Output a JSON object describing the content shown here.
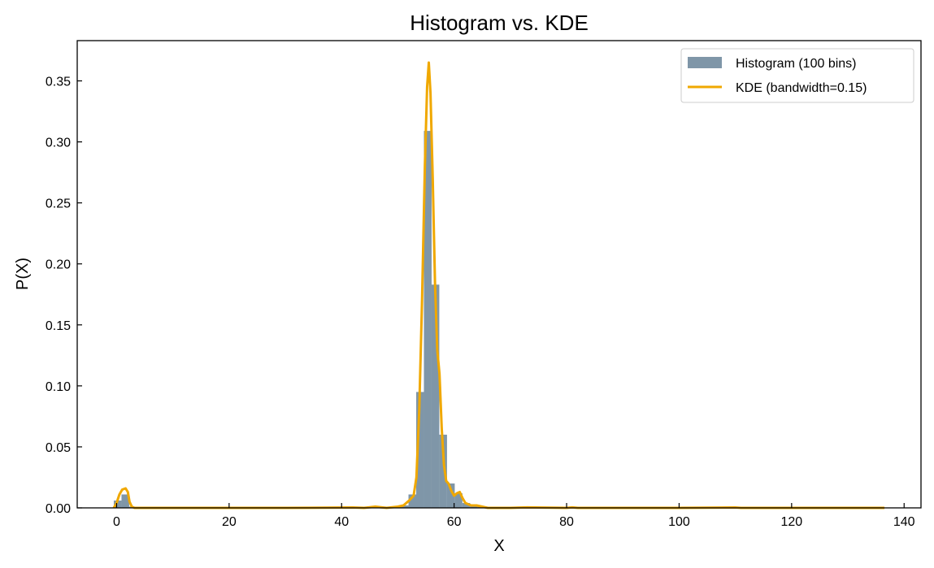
{
  "chart_data": {
    "type": "bar",
    "title": "Histogram vs. KDE",
    "xlabel": "X",
    "ylabel": "P(X)",
    "xlim": [
      -7,
      143
    ],
    "ylim": [
      0,
      0.383
    ],
    "xticks": [
      0,
      20,
      40,
      60,
      80,
      100,
      120,
      140
    ],
    "yticks": [
      0.0,
      0.05,
      0.1,
      0.15,
      0.2,
      0.25,
      0.3,
      0.35
    ],
    "grid": false,
    "legend_position": "top-right",
    "colors": {
      "histogram": "#7f96a8",
      "kde": "#f0a800",
      "axes": "#000000"
    },
    "series": [
      {
        "name": "Histogram (100 bins)",
        "kind": "histogram",
        "bin_edges_start": -0.5,
        "bin_width": 1.37,
        "bins": [
          {
            "x0": -0.5,
            "x1": 0.87,
            "y": 0.006
          },
          {
            "x0": 0.87,
            "x1": 2.24,
            "y": 0.011
          },
          {
            "x0": 2.24,
            "x1": 3.61,
            "y": 0.001
          },
          {
            "x0": 45.04,
            "x1": 46.41,
            "y": 0.0005
          },
          {
            "x0": 49.15,
            "x1": 50.52,
            "y": 0.001
          },
          {
            "x0": 50.52,
            "x1": 51.89,
            "y": 0.002
          },
          {
            "x0": 51.89,
            "x1": 53.26,
            "y": 0.011
          },
          {
            "x0": 53.26,
            "x1": 54.63,
            "y": 0.095
          },
          {
            "x0": 54.63,
            "x1": 56.0,
            "y": 0.309
          },
          {
            "x0": 56.0,
            "x1": 57.37,
            "y": 0.183
          },
          {
            "x0": 57.37,
            "x1": 58.74,
            "y": 0.06
          },
          {
            "x0": 58.74,
            "x1": 60.11,
            "y": 0.02
          },
          {
            "x0": 60.11,
            "x1": 61.48,
            "y": 0.012
          },
          {
            "x0": 61.48,
            "x1": 62.85,
            "y": 0.004
          },
          {
            "x0": 62.85,
            "x1": 64.22,
            "y": 0.002
          },
          {
            "x0": 64.22,
            "x1": 65.59,
            "y": 0.001
          }
        ]
      },
      {
        "name": "KDE (bandwidth=0.15)",
        "kind": "line",
        "points": [
          [
            -0.5,
            0.0
          ],
          [
            0,
            0.004
          ],
          [
            0.5,
            0.011
          ],
          [
            1.0,
            0.015
          ],
          [
            1.6,
            0.016
          ],
          [
            2.0,
            0.013
          ],
          [
            2.3,
            0.005
          ],
          [
            2.7,
            0.001
          ],
          [
            3.2,
            0.0
          ],
          [
            10,
            0.0
          ],
          [
            30,
            0.0
          ],
          [
            42,
            0.0003
          ],
          [
            44,
            0.0
          ],
          [
            46,
            0.001
          ],
          [
            48,
            0.0
          ],
          [
            50,
            0.001
          ],
          [
            51,
            0.002
          ],
          [
            52,
            0.006
          ],
          [
            52.8,
            0.01
          ],
          [
            53.3,
            0.025
          ],
          [
            53.8,
            0.08
          ],
          [
            54.3,
            0.17
          ],
          [
            54.8,
            0.28
          ],
          [
            55.2,
            0.345
          ],
          [
            55.5,
            0.365
          ],
          [
            55.8,
            0.34
          ],
          [
            56.2,
            0.27
          ],
          [
            56.6,
            0.185
          ],
          [
            57.0,
            0.13
          ],
          [
            57.4,
            0.11
          ],
          [
            57.8,
            0.065
          ],
          [
            58.2,
            0.035
          ],
          [
            58.6,
            0.022
          ],
          [
            59.0,
            0.02
          ],
          [
            59.5,
            0.014
          ],
          [
            60.0,
            0.01
          ],
          [
            60.5,
            0.012
          ],
          [
            61.0,
            0.013
          ],
          [
            61.5,
            0.008
          ],
          [
            62.0,
            0.004
          ],
          [
            63.0,
            0.002
          ],
          [
            64.0,
            0.002
          ],
          [
            65.0,
            0.001
          ],
          [
            66.0,
            0.0
          ],
          [
            70,
            0.0
          ],
          [
            73,
            0.0004
          ],
          [
            80,
            0.0
          ],
          [
            81,
            0.0004
          ],
          [
            82,
            0.0
          ],
          [
            100,
            0.0
          ],
          [
            110,
            0.0003
          ],
          [
            111,
            0.0
          ],
          [
            136.5,
            0.0
          ]
        ]
      }
    ]
  }
}
